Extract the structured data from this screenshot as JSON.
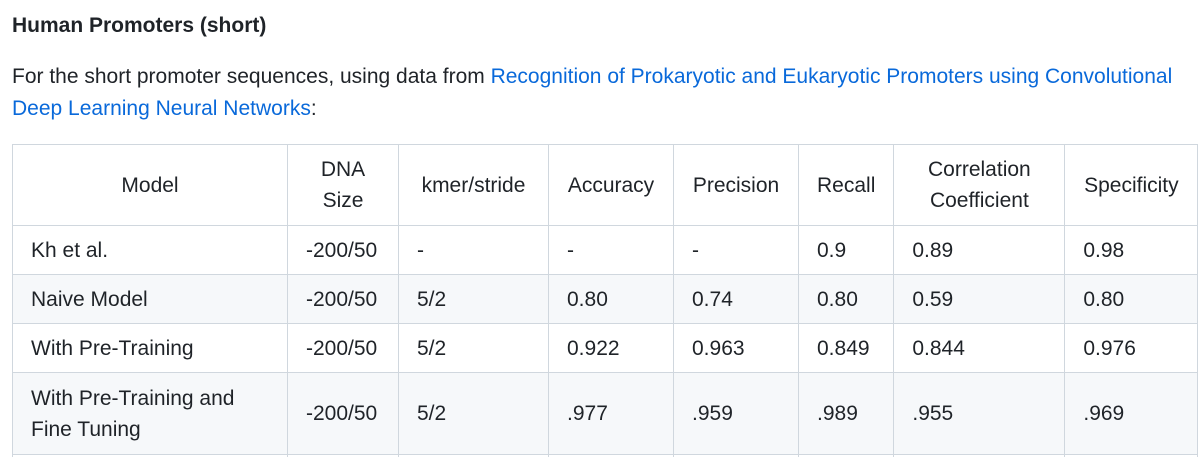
{
  "heading": "Human Promoters (short)",
  "intro": {
    "prefix": "For the short promoter sequences, using data from ",
    "link_text": "Recognition of Prokaryotic and Eukaryotic Promoters using Convolutional Deep Learning Neural Networks",
    "suffix": ":",
    "link_color": "#0969da"
  },
  "table": {
    "headers": {
      "model": "Model",
      "dna_size_1": "DNA",
      "dna_size_2": "Size",
      "kmer_stride": "kmer/stride",
      "accuracy": "Accuracy",
      "precision": "Precision",
      "recall": "Recall",
      "corr_1": "Correlation",
      "corr_2": "Coefficient",
      "specificity": "Specificity"
    },
    "rows": [
      {
        "model": "Kh et al.",
        "dna_size": "-200/50",
        "kmer_stride": "-",
        "accuracy": "-",
        "precision": "-",
        "recall": "0.9",
        "correlation": "0.89",
        "specificity": "0.98"
      },
      {
        "model": "Naive Model",
        "dna_size": "-200/50",
        "kmer_stride": "5/2",
        "accuracy": "0.80",
        "precision": "0.74",
        "recall": "0.80",
        "correlation": "0.59",
        "specificity": "0.80"
      },
      {
        "model": "With Pre-Training",
        "dna_size": "-200/50",
        "kmer_stride": "5/2",
        "accuracy": "0.922",
        "precision": "0.963",
        "recall": "0.849",
        "correlation": "0.844",
        "specificity": "0.976"
      },
      {
        "model_1": "With Pre-Training and",
        "model_2": "Fine Tuning",
        "dna_size": "-200/50",
        "kmer_stride": "5/2",
        "accuracy": ".977",
        "precision": ".959",
        "recall": ".989",
        "correlation": ".955",
        "specificity": ".969"
      }
    ]
  }
}
